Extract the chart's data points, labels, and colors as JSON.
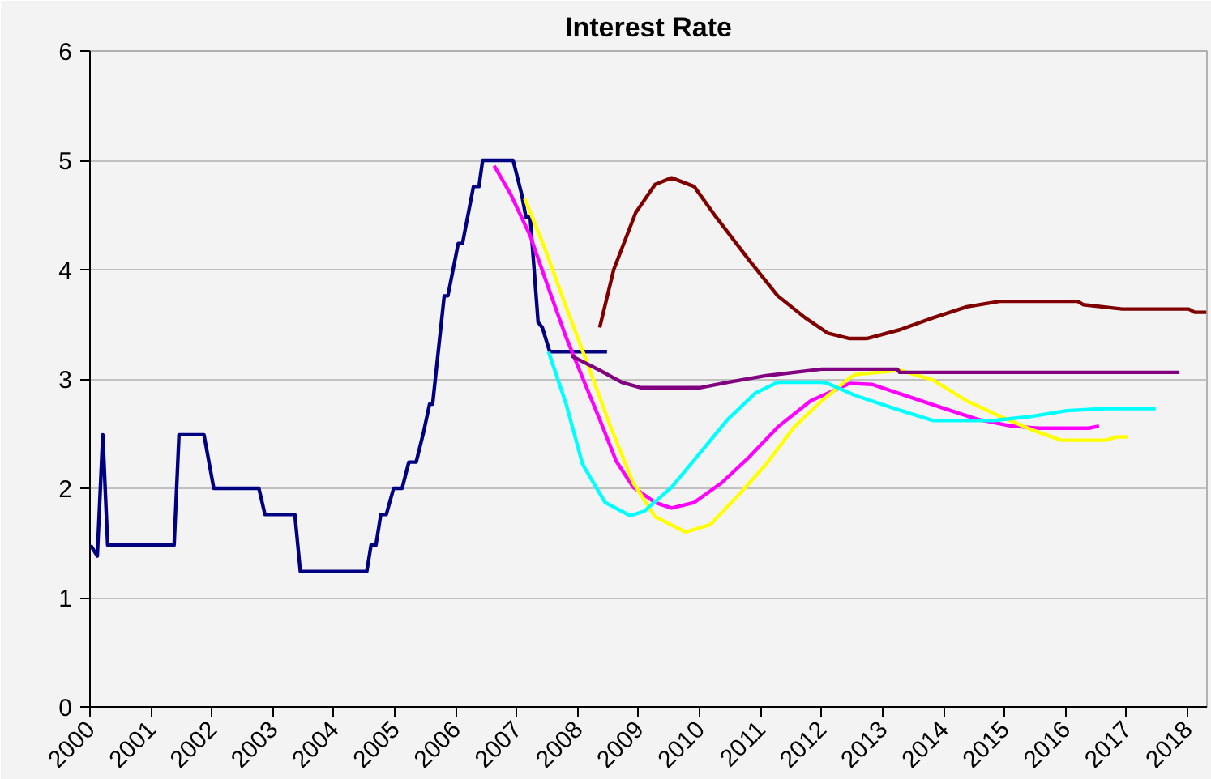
{
  "chart_data": {
    "type": "line",
    "title": "Interest Rate",
    "xlim": [
      2000,
      2018.32
    ],
    "xticks": [
      2000,
      2001,
      2002,
      2003,
      2004,
      2005,
      2006,
      2007,
      2008,
      2009,
      2010,
      2011,
      2012,
      2013,
      2014,
      2015,
      2016,
      2017,
      2018
    ],
    "ylim": [
      0,
      6
    ],
    "yticks": [
      0,
      1,
      2,
      3,
      4,
      5,
      6
    ],
    "grid": "y",
    "marker": "none",
    "line_style": "solid",
    "series": [
      {
        "color": "#000080",
        "x": [
          2000.01,
          2000.12,
          2000.21,
          2000.29,
          2001.38,
          2001.46,
          2001.87,
          2002.03,
          2002.77,
          2002.87,
          2003.36,
          2003.45,
          2004.54,
          2004.61,
          2004.69,
          2004.77,
          2004.86,
          2004.98,
          2005.12,
          2005.23,
          2005.35,
          2005.47,
          2005.57,
          2005.62,
          2005.81,
          2005.87,
          2006.04,
          2006.11,
          2006.29,
          2006.38,
          2006.44,
          2006.94,
          2007.08,
          2007.15,
          2007.22,
          2007.35,
          2007.42,
          2007.54,
          2008.48
        ],
        "values": [
          1.48,
          1.38,
          2.49,
          1.48,
          1.48,
          2.49,
          2.49,
          2.0,
          2.0,
          1.76,
          1.76,
          1.24,
          1.24,
          1.48,
          1.48,
          1.76,
          1.76,
          2.0,
          2.0,
          2.24,
          2.24,
          2.51,
          2.77,
          2.77,
          3.76,
          3.76,
          4.24,
          4.24,
          4.76,
          4.76,
          5.0,
          5.0,
          4.69,
          4.48,
          4.48,
          3.52,
          3.47,
          3.25,
          3.25
        ]
      },
      {
        "color": "#ff00ff",
        "x": [
          2006.63,
          2006.9,
          2007.22,
          2007.54,
          2007.81,
          2008.08,
          2008.36,
          2008.63,
          2008.91,
          2009.27,
          2009.54,
          2009.91,
          2010.36,
          2010.82,
          2011.28,
          2011.82,
          2012.46,
          2012.83,
          2013.47,
          2014.01,
          2014.56,
          2015.11,
          2015.56,
          2016.38,
          2016.55
        ],
        "values": [
          4.95,
          4.69,
          4.31,
          3.8,
          3.38,
          3.01,
          2.63,
          2.25,
          2.01,
          1.87,
          1.82,
          1.87,
          2.05,
          2.29,
          2.56,
          2.8,
          2.96,
          2.95,
          2.83,
          2.73,
          2.63,
          2.57,
          2.55,
          2.55,
          2.57
        ]
      },
      {
        "color": "#ffff00",
        "x": [
          2007.13,
          2007.45,
          2007.81,
          2008.18,
          2008.54,
          2008.91,
          2009.27,
          2009.77,
          2010.18,
          2010.64,
          2011.09,
          2011.55,
          2012.0,
          2012.46,
          2012.55,
          2013.28,
          2013.83,
          2014.38,
          2014.92,
          2015.47,
          2015.93,
          2016.66,
          2016.84,
          2017.02
        ],
        "values": [
          4.65,
          4.21,
          3.66,
          3.11,
          2.56,
          2.05,
          1.74,
          1.6,
          1.67,
          1.94,
          2.22,
          2.56,
          2.8,
          3.01,
          3.04,
          3.08,
          2.99,
          2.8,
          2.66,
          2.53,
          2.44,
          2.44,
          2.47,
          2.47
        ]
      },
      {
        "color": "#00ffff",
        "x": [
          2007.52,
          2007.81,
          2008.08,
          2008.45,
          2008.86,
          2009.09,
          2009.54,
          2010.0,
          2010.46,
          2010.91,
          2011.28,
          2012.01,
          2012.1,
          2012.55,
          2013.19,
          2013.83,
          2014.83,
          2015.47,
          2016.02,
          2016.66,
          2017.48
        ],
        "values": [
          3.25,
          2.77,
          2.22,
          1.87,
          1.75,
          1.79,
          2.01,
          2.32,
          2.63,
          2.87,
          2.97,
          2.97,
          2.96,
          2.85,
          2.73,
          2.62,
          2.62,
          2.66,
          2.71,
          2.73,
          2.73
        ]
      },
      {
        "color": "#800080",
        "x": [
          2007.9,
          2008.36,
          2008.72,
          2009.04,
          2010.0,
          2010.46,
          2011.09,
          2012.0,
          2013.24,
          2013.28,
          2017.87
        ],
        "values": [
          3.21,
          3.08,
          2.97,
          2.92,
          2.92,
          2.97,
          3.03,
          3.09,
          3.09,
          3.06,
          3.06
        ]
      },
      {
        "color": "#800000",
        "x": [
          2008.36,
          2008.59,
          2008.95,
          2009.27,
          2009.54,
          2009.91,
          2010.27,
          2010.82,
          2011.28,
          2011.73,
          2012.1,
          2012.46,
          2012.74,
          2013.28,
          2013.83,
          2014.38,
          2014.92,
          2016.2,
          2016.29,
          2016.93,
          2018.02,
          2018.12,
          2018.31
        ],
        "values": [
          3.47,
          4.0,
          4.52,
          4.78,
          4.84,
          4.76,
          4.48,
          4.08,
          3.76,
          3.56,
          3.42,
          3.37,
          3.37,
          3.45,
          3.56,
          3.66,
          3.71,
          3.71,
          3.68,
          3.64,
          3.64,
          3.61,
          3.61
        ]
      }
    ]
  }
}
